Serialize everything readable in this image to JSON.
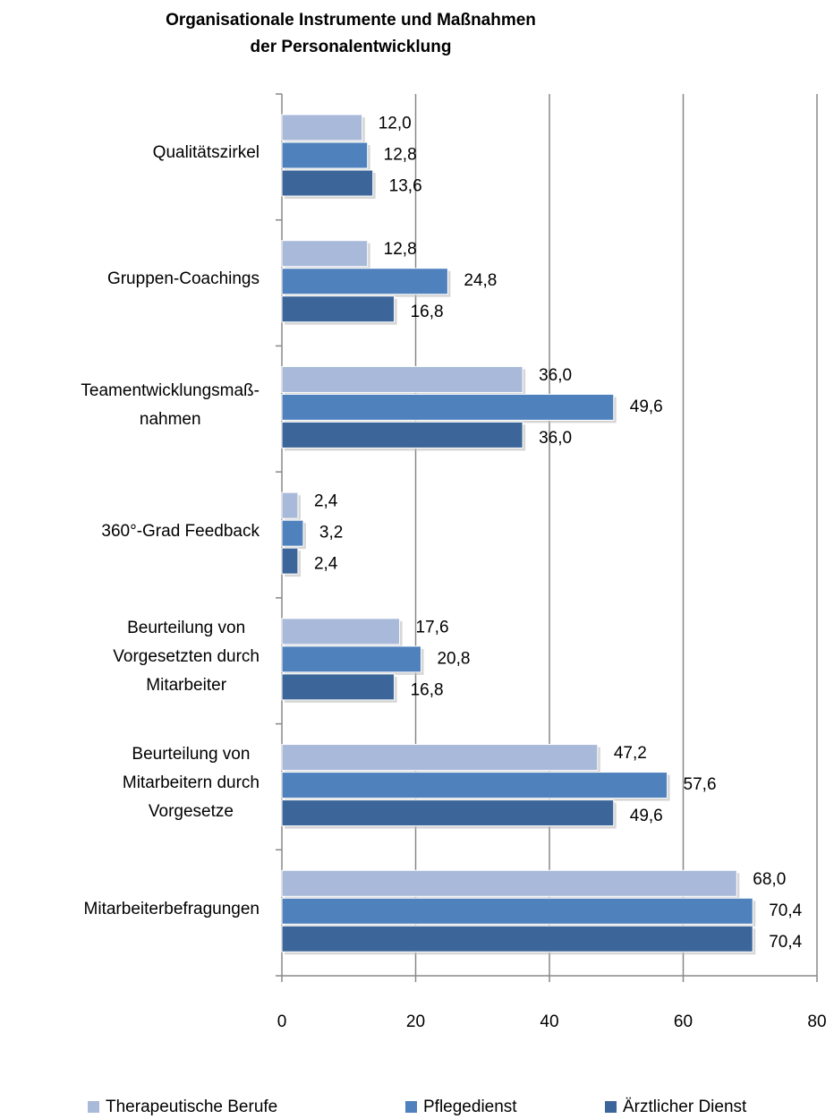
{
  "chart_data": {
    "type": "barh",
    "title": "Organisationale  Instrumente und Maßnahmen\nder Personalentwicklung",
    "categories": [
      "Qualitätszirkel",
      "Gruppen-Coachings",
      "Teamentwicklungsmaß-\nnahmen",
      "360°-Grad Feedback",
      "Beurteilung von\nVorgesetzten durch\nMitarbeiter",
      "Beurteilung von\nMitarbeitern durch\nVorgesetze",
      "Mitarbeiterbefragungen"
    ],
    "series": [
      {
        "name": "Therapeutische Berufe",
        "color": "#a9b9d9",
        "values": [
          12.0,
          12.8,
          36.0,
          2.4,
          17.6,
          47.2,
          68.0
        ],
        "value_labels": [
          "12,0",
          "12,8",
          "36,0",
          "2,4",
          "17,6",
          "47,2",
          "68,0"
        ]
      },
      {
        "name": "Pflegedienst",
        "color": "#4f81bd",
        "values": [
          12.8,
          24.8,
          49.6,
          3.2,
          20.8,
          57.6,
          70.4
        ],
        "value_labels": [
          "12,8",
          "24,8",
          "49,6",
          "3,2",
          "20,8",
          "57,6",
          "70,4"
        ]
      },
      {
        "name": "Ärztlicher Dienst",
        "color": "#3c6699",
        "values": [
          13.6,
          16.8,
          36.0,
          2.4,
          16.8,
          49.6,
          70.4
        ],
        "value_labels": [
          "13,6",
          "16,8",
          "36,0",
          "2,4",
          "16,8",
          "49,6",
          "70,4"
        ]
      }
    ],
    "xlim": [
      0,
      80
    ],
    "xticks": [
      0,
      20,
      40,
      60,
      80
    ],
    "grid": true,
    "legend": "bottom"
  }
}
